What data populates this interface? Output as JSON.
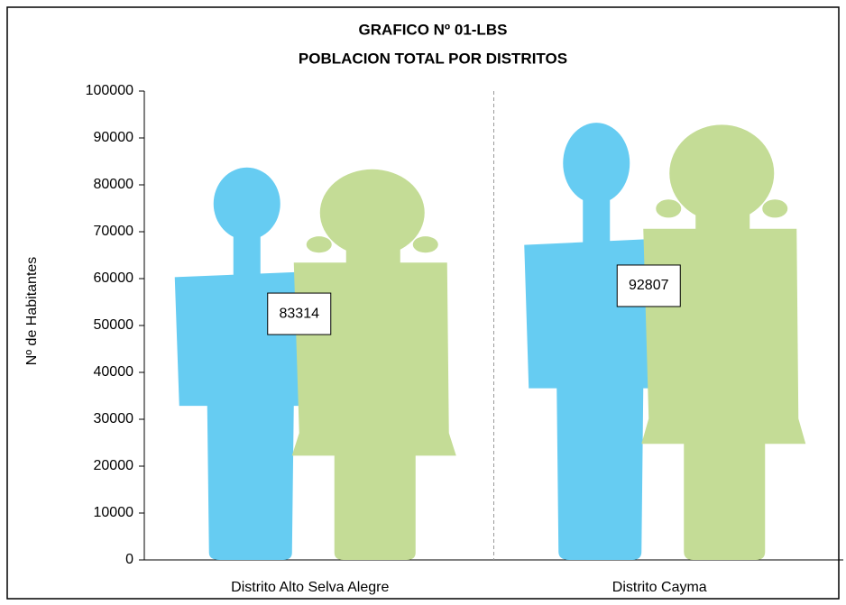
{
  "chart_data": {
    "type": "pictograph",
    "title": [
      "GRAFICO Nº 01-LBS",
      "POBLACION TOTAL POR DISTRITOS"
    ],
    "y_label": "Nº de Habitantes",
    "categories": [
      "Distrito Alto Selva Alegre",
      "Distrito Cayma"
    ],
    "values": [
      83314,
      92807
    ],
    "colors": [
      "#66ccf2",
      "#c4dc96"
    ],
    "ylim": [
      0,
      100000
    ],
    "yticks": [
      0,
      10000,
      20000,
      30000,
      40000,
      50000,
      60000,
      70000,
      80000,
      90000,
      100000
    ],
    "grid": false
  }
}
